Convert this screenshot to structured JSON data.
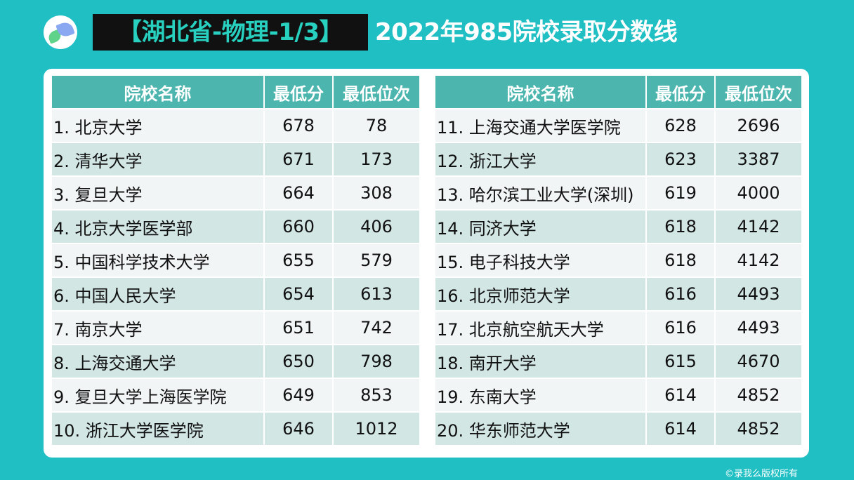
{
  "header": {
    "tag": "【湖北省-物理-1/3】",
    "title": "2022年985院校录取分数线"
  },
  "columns": [
    "院校名称",
    "最低分",
    "最低位次"
  ],
  "left_rows": [
    {
      "name": "1. 北京大学",
      "score": "678",
      "rank": "78"
    },
    {
      "name": "2. 清华大学",
      "score": "671",
      "rank": "173"
    },
    {
      "name": "3. 复旦大学",
      "score": "664",
      "rank": "308"
    },
    {
      "name": "4. 北京大学医学部",
      "score": "660",
      "rank": "406"
    },
    {
      "name": "5. 中国科学技术大学",
      "score": "655",
      "rank": "579"
    },
    {
      "name": "6. 中国人民大学",
      "score": "654",
      "rank": "613"
    },
    {
      "name": "7. 南京大学",
      "score": "651",
      "rank": "742"
    },
    {
      "name": "8. 上海交通大学",
      "score": "650",
      "rank": "798"
    },
    {
      "name": "9. 复旦大学上海医学院",
      "score": "649",
      "rank": "853"
    },
    {
      "name": "10. 浙江大学医学院",
      "score": "646",
      "rank": "1012"
    }
  ],
  "right_rows": [
    {
      "name": "11. 上海交通大学医学院",
      "score": "628",
      "rank": "2696"
    },
    {
      "name": "12. 浙江大学",
      "score": "623",
      "rank": "3387"
    },
    {
      "name": "13. 哈尔滨工业大学(深圳)",
      "score": "619",
      "rank": "4000"
    },
    {
      "name": "14. 同济大学",
      "score": "618",
      "rank": "4142"
    },
    {
      "name": "15. 电子科技大学",
      "score": "618",
      "rank": "4142"
    },
    {
      "name": "16. 北京师范大学",
      "score": "616",
      "rank": "4493"
    },
    {
      "name": "17. 北京航空航天大学",
      "score": "616",
      "rank": "4493"
    },
    {
      "name": "18. 南开大学",
      "score": "615",
      "rank": "4670"
    },
    {
      "name": "19. 东南大学",
      "score": "614",
      "rank": "4852"
    },
    {
      "name": "20. 华东师范大学",
      "score": "614",
      "rank": "4852"
    }
  ],
  "footer": {
    "copyright": "©录我么版权所有"
  },
  "colors": {
    "background": "#1fbfc4",
    "header_row": "#4bb5ae",
    "row_light": "#f2f5f5",
    "row_dark": "#d2e6e4",
    "tag_text": "#27d0bf"
  }
}
